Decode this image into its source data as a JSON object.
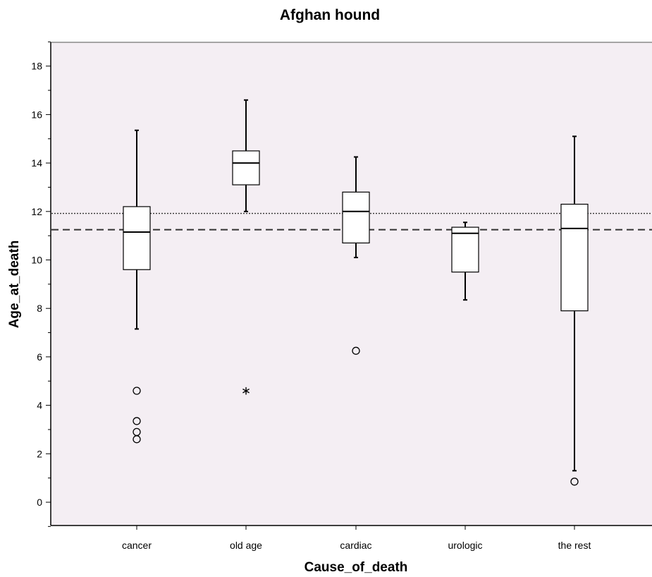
{
  "chart_data": {
    "type": "boxplot",
    "title": "Afghan hound",
    "xlabel": "Cause_of_death",
    "ylabel": "Age_at_death",
    "ylim": [
      -1,
      19
    ],
    "yticks": [
      0,
      2,
      4,
      6,
      8,
      10,
      12,
      14,
      16,
      18
    ],
    "grid": false,
    "colors": {
      "plot_background": "#f4eef3",
      "box_fill": "#ffffff",
      "stroke": "#000000"
    },
    "reference_lines": [
      {
        "style": "dotted",
        "y": 11.92
      },
      {
        "style": "dashed",
        "y": 11.25
      }
    ],
    "categories": [
      "cancer",
      "old age",
      "cardiac",
      "urologic",
      "the rest"
    ],
    "boxes": [
      {
        "category": "cancer",
        "whisker_low": 7.15,
        "q1": 9.6,
        "median": 11.15,
        "q3": 12.2,
        "whisker_high": 15.35,
        "outliers": [
          {
            "y": 4.6,
            "marker": "circle"
          },
          {
            "y": 3.35,
            "marker": "circle"
          },
          {
            "y": 2.9,
            "marker": "circle"
          },
          {
            "y": 2.6,
            "marker": "circle"
          }
        ]
      },
      {
        "category": "old age",
        "whisker_low": 12.0,
        "q1": 13.1,
        "median": 14.0,
        "q3": 14.5,
        "whisker_high": 16.6,
        "outliers": [
          {
            "y": 4.65,
            "marker": "star"
          }
        ]
      },
      {
        "category": "cardiac",
        "whisker_low": 10.1,
        "q1": 10.7,
        "median": 12.0,
        "q3": 12.8,
        "whisker_high": 14.25,
        "outliers": [
          {
            "y": 6.25,
            "marker": "circle"
          }
        ]
      },
      {
        "category": "urologic",
        "whisker_low": 8.35,
        "q1": 9.5,
        "median": 11.1,
        "q3": 11.35,
        "whisker_high": 11.55,
        "outliers": []
      },
      {
        "category": "the rest",
        "whisker_low": 1.3,
        "q1": 7.9,
        "median": 11.3,
        "q3": 12.3,
        "whisker_high": 15.1,
        "outliers": [
          {
            "y": 0.85,
            "marker": "circle"
          }
        ]
      }
    ]
  }
}
